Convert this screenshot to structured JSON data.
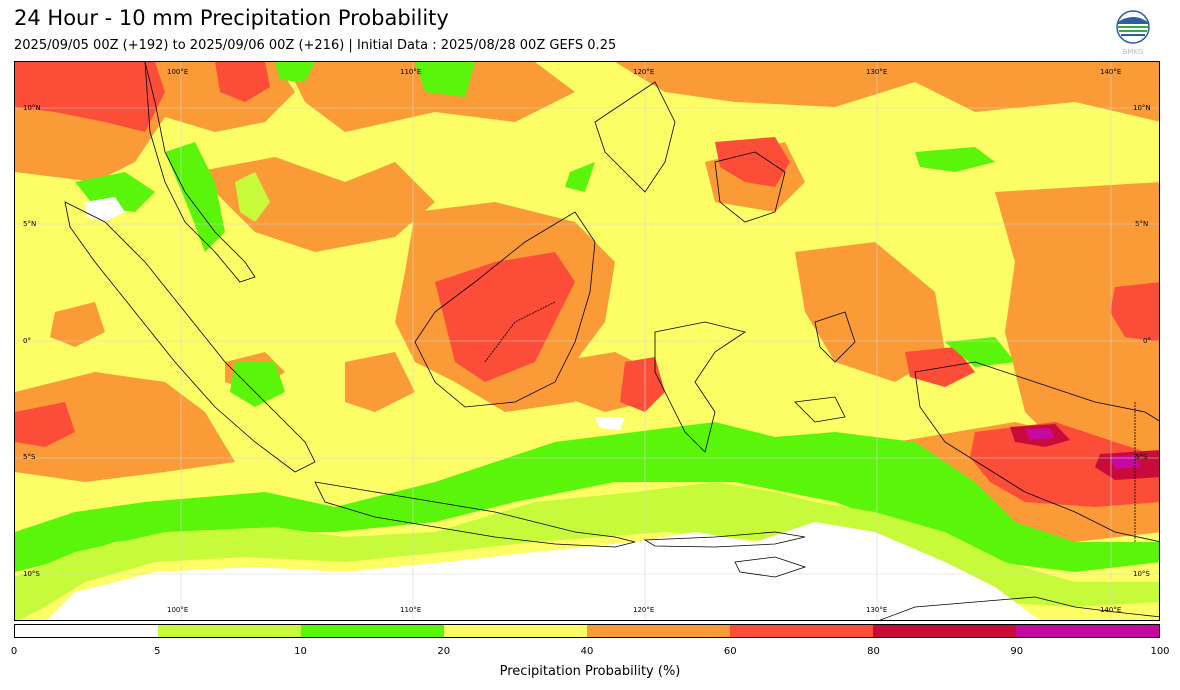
{
  "title": "24 Hour - 10 mm Precipitation Probability",
  "subtitle": "2025/09/05 00Z (+192) to 2025/09/06 00Z (+216) | Initial Data : 2025/08/28 00Z GEFS 0.25",
  "logo": {
    "text": "BMKG",
    "icon": "bmkg-logo"
  },
  "map": {
    "lon_labels": [
      "100°E",
      "110°E",
      "120°E",
      "130°E",
      "140°E"
    ],
    "lat_labels": [
      "10°N",
      "5°N",
      "0°",
      "5°S",
      "10°S"
    ]
  },
  "colorbar": {
    "label": "Precipitation Probability (%)",
    "ticks": [
      "0",
      "5",
      "10",
      "20",
      "40",
      "60",
      "80",
      "90",
      "100"
    ],
    "colors": [
      "#ffffff",
      "#c8fa3c",
      "#5af50a",
      "#fdfd66",
      "#fb9b37",
      "#fb4d37",
      "#ca0a3a",
      "#c809a0"
    ]
  }
}
